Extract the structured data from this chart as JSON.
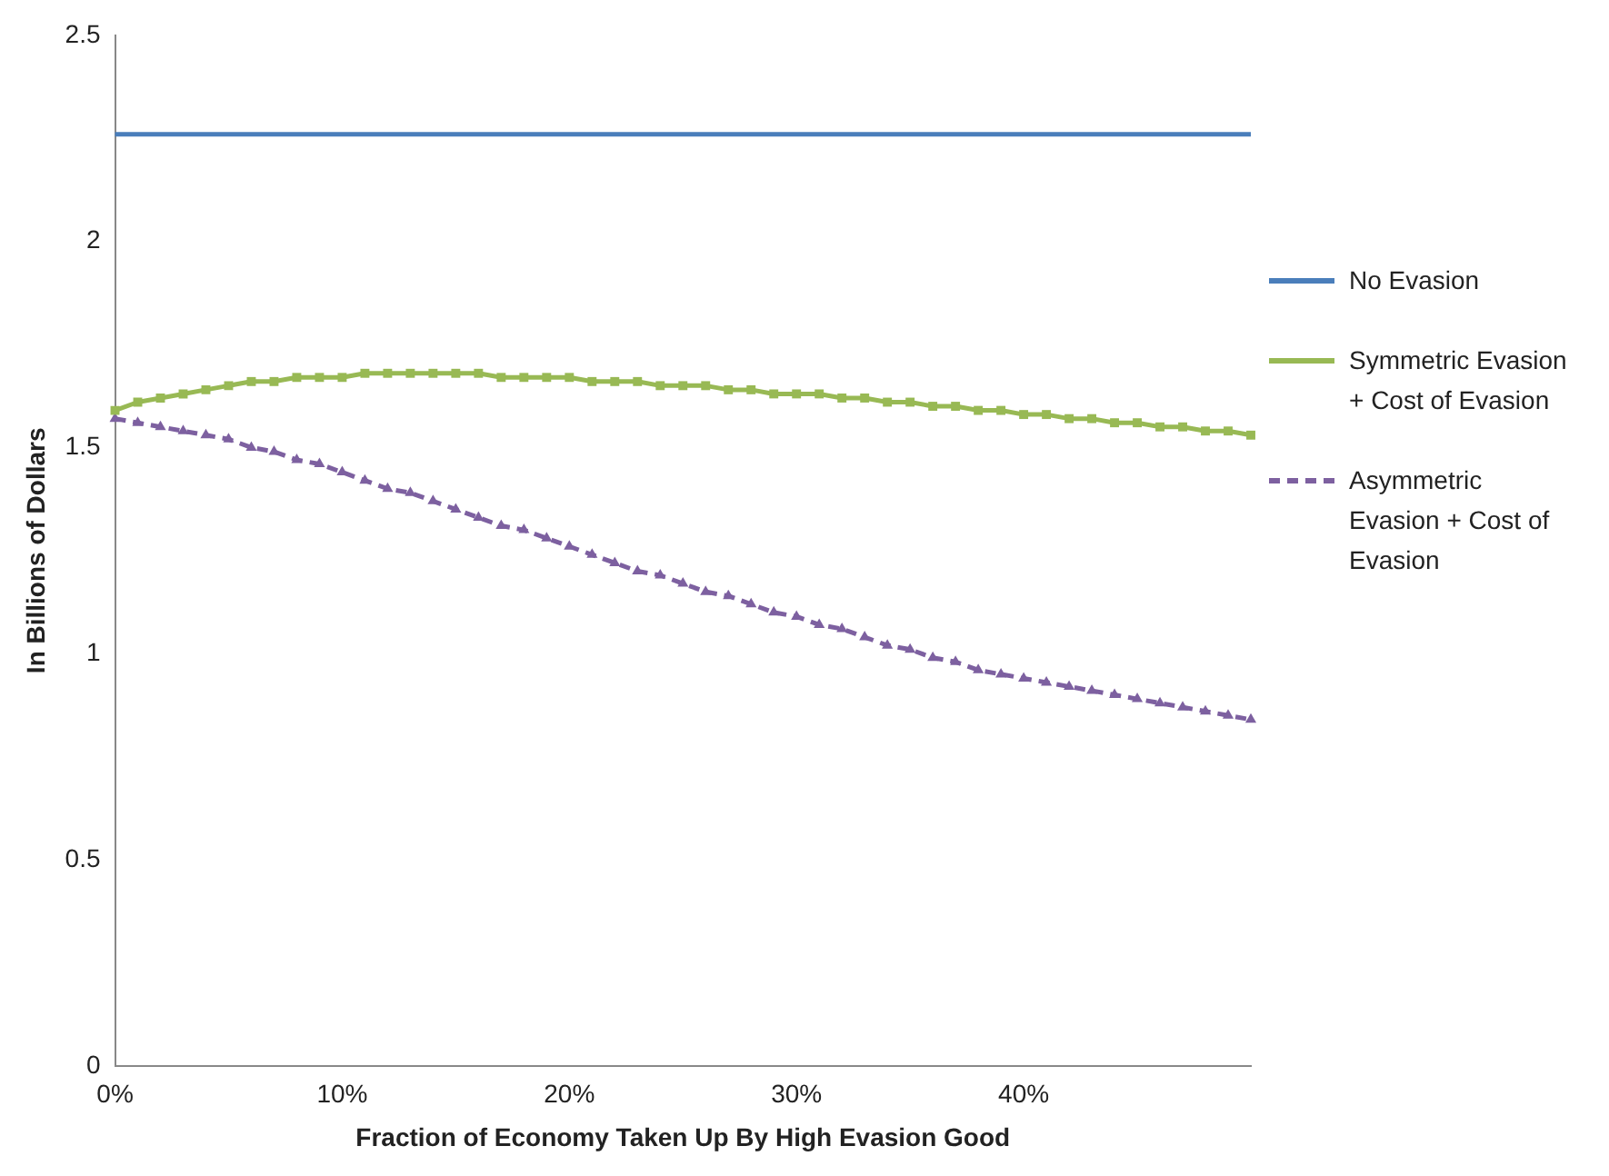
{
  "chart_data": {
    "type": "line",
    "xlabel": "Fraction of Economy Taken Up By High Evasion Good",
    "ylabel": "In Billions of Dollars",
    "categories": [
      "0%",
      null,
      null,
      null,
      null,
      null,
      null,
      null,
      null,
      null,
      "10%",
      null,
      null,
      null,
      null,
      null,
      null,
      null,
      null,
      null,
      "20%",
      null,
      null,
      null,
      null,
      null,
      null,
      null,
      null,
      null,
      "30%",
      null,
      null,
      null,
      null,
      null,
      null,
      null,
      null,
      null,
      "40%",
      null,
      null,
      null,
      null,
      null,
      null,
      null,
      null,
      null,
      null
    ],
    "series": [
      {
        "name": "No Evasion",
        "color": "#4a7ebb",
        "marker": "none",
        "line_style": "solid",
        "values": [
          2.26,
          2.26,
          2.26,
          2.26,
          2.26,
          2.26,
          2.26,
          2.26,
          2.26,
          2.26,
          2.26,
          2.26,
          2.26,
          2.26,
          2.26,
          2.26,
          2.26,
          2.26,
          2.26,
          2.26,
          2.26,
          2.26,
          2.26,
          2.26,
          2.26,
          2.26,
          2.26,
          2.26,
          2.26,
          2.26,
          2.26,
          2.26,
          2.26,
          2.26,
          2.26,
          2.26,
          2.26,
          2.26,
          2.26,
          2.26,
          2.26,
          2.26,
          2.26,
          2.26,
          2.26,
          2.26,
          2.26,
          2.26,
          2.26,
          2.26,
          2.26
        ]
      },
      {
        "name": "Symmetric Evasion + Cost of Evasion",
        "color": "#98b954",
        "marker": "square",
        "line_style": "solid",
        "values": [
          1.59,
          1.61,
          1.62,
          1.63,
          1.64,
          1.65,
          1.66,
          1.66,
          1.67,
          1.67,
          1.67,
          1.68,
          1.68,
          1.68,
          1.68,
          1.68,
          1.68,
          1.67,
          1.67,
          1.67,
          1.67,
          1.66,
          1.66,
          1.66,
          1.65,
          1.65,
          1.65,
          1.64,
          1.64,
          1.63,
          1.63,
          1.63,
          1.62,
          1.62,
          1.61,
          1.61,
          1.6,
          1.6,
          1.59,
          1.59,
          1.58,
          1.58,
          1.57,
          1.57,
          1.56,
          1.56,
          1.55,
          1.55,
          1.54,
          1.54,
          1.53
        ]
      },
      {
        "name": "Asymmetric Evasion + Cost of Evasion",
        "color": "#7d60a0",
        "marker": "triangle",
        "line_style": "dashed",
        "values": [
          1.57,
          1.56,
          1.55,
          1.54,
          1.53,
          1.52,
          1.5,
          1.49,
          1.47,
          1.46,
          1.44,
          1.42,
          1.4,
          1.39,
          1.37,
          1.35,
          1.33,
          1.31,
          1.3,
          1.28,
          1.26,
          1.24,
          1.22,
          1.2,
          1.19,
          1.17,
          1.15,
          1.14,
          1.12,
          1.1,
          1.09,
          1.07,
          1.06,
          1.04,
          1.02,
          1.01,
          0.99,
          0.98,
          0.96,
          0.95,
          0.94,
          0.93,
          0.92,
          0.91,
          0.9,
          0.89,
          0.88,
          0.87,
          0.86,
          0.85,
          0.84
        ]
      }
    ],
    "ylim": [
      0,
      2.5
    ],
    "yticks": [
      0,
      0.5,
      1,
      1.5,
      2,
      2.5
    ],
    "grid": false,
    "legend": "right"
  }
}
